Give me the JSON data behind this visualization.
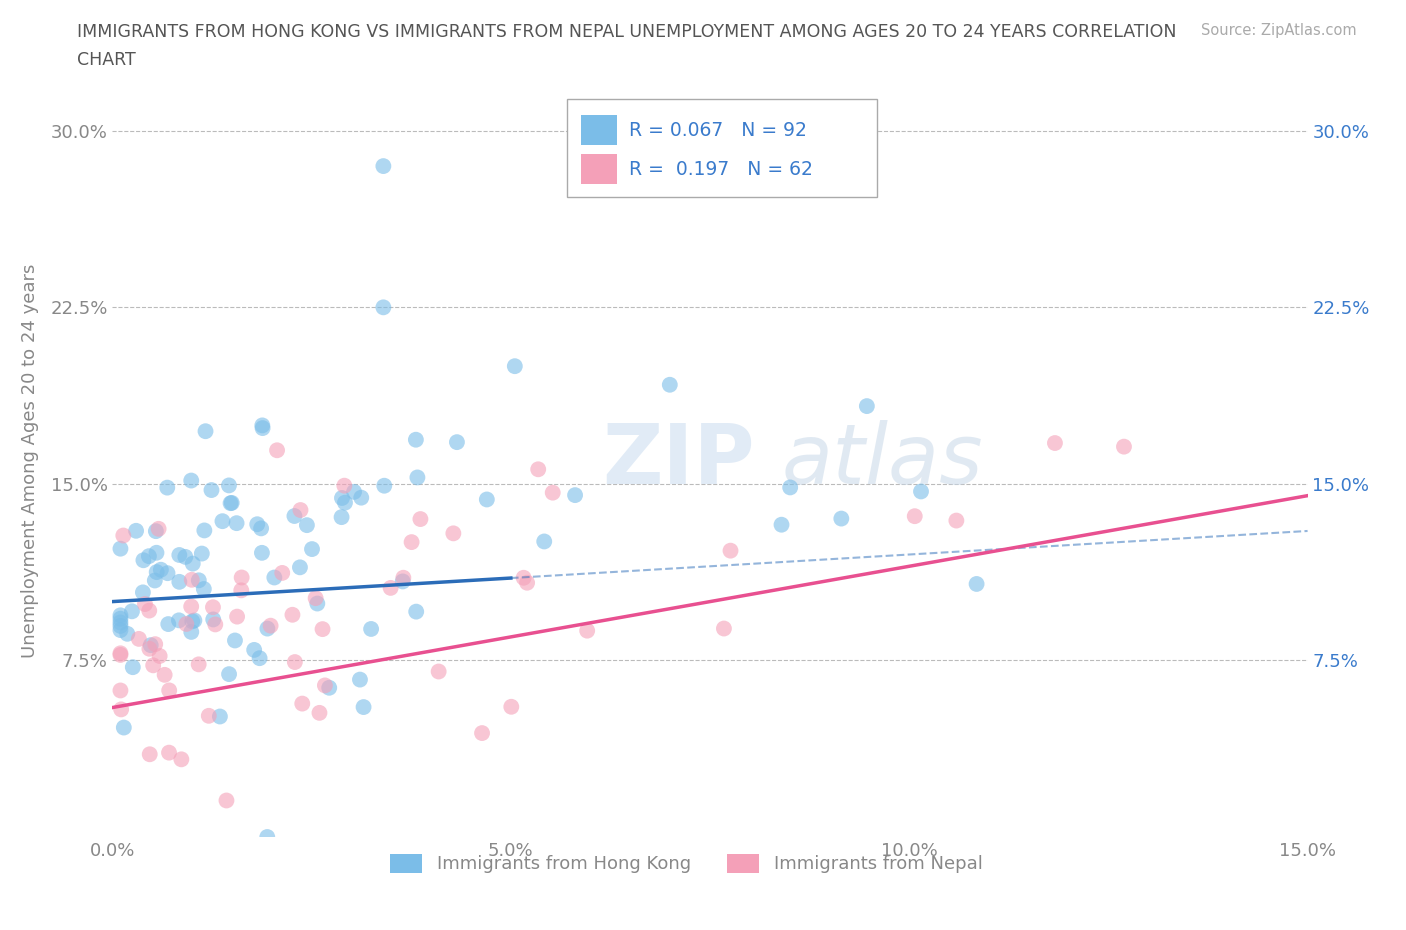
{
  "title_line1": "IMMIGRANTS FROM HONG KONG VS IMMIGRANTS FROM NEPAL UNEMPLOYMENT AMONG AGES 20 TO 24 YEARS CORRELATION",
  "title_line2": "CHART",
  "source": "Source: ZipAtlas.com",
  "ylabel": "Unemployment Among Ages 20 to 24 years",
  "xlim": [
    0.0,
    0.15
  ],
  "ylim": [
    0.0,
    0.32
  ],
  "xticks": [
    0.0,
    0.05,
    0.1,
    0.15
  ],
  "xticklabels": [
    "0.0%",
    "5.0%",
    "10.0%",
    "15.0%"
  ],
  "yticks": [
    0.0,
    0.075,
    0.15,
    0.225,
    0.3
  ],
  "yticklabels_left": [
    "",
    "7.5%",
    "15.0%",
    "22.5%",
    "30.0%"
  ],
  "yticklabels_right": [
    "",
    "7.5%",
    "15.0%",
    "22.5%",
    "30.0%"
  ],
  "hk_color": "#7bbde8",
  "nepal_color": "#f4a0b8",
  "hk_line_color": "#2b6cb8",
  "nepal_line_color": "#e85090",
  "R_hk": 0.067,
  "N_hk": 92,
  "R_nepal": 0.197,
  "N_nepal": 62,
  "legend_label_hk": "Immigrants from Hong Kong",
  "legend_label_nepal": "Immigrants from Nepal",
  "watermark_zip": "ZIP",
  "watermark_atlas": "atlas",
  "background_color": "#ffffff",
  "grid_color": "#bbbbbb",
  "tick_color": "#888888",
  "title_color": "#555555",
  "right_tick_color": "#3a7bcc",
  "seed": 1234
}
